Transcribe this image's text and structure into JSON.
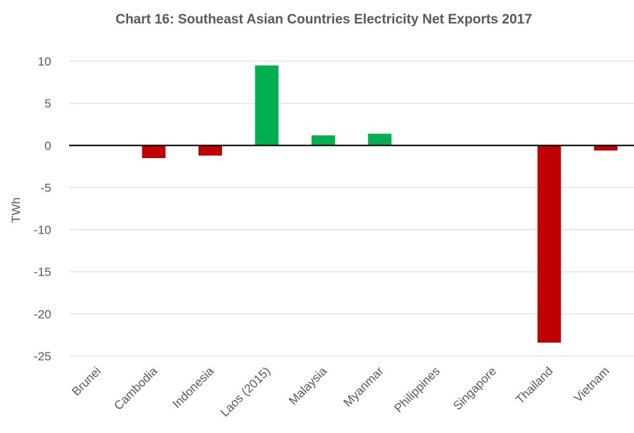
{
  "chart_data": {
    "type": "bar",
    "title": "Chart 16: Southeast Asian Countries Electricity Net Exports 2017",
    "xlabel": "",
    "ylabel": "TWh",
    "ylim": [
      -25,
      10
    ],
    "yticks": [
      10,
      5,
      0,
      -5,
      -10,
      -15,
      -20,
      -25
    ],
    "grid": true,
    "legend": "none",
    "categories": [
      "Brunei",
      "Cambodia",
      "Indonesia",
      "Laos (2015)",
      "Malaysia",
      "Myanmar",
      "Philippines",
      "Singapore",
      "Thailand",
      "Vietnam"
    ],
    "values": [
      0,
      -1.5,
      -1.2,
      9.5,
      1.2,
      1.4,
      0,
      0,
      -23.4,
      -0.6
    ],
    "colors": {
      "positive": "#00b050",
      "negative": "#c00000",
      "grid": "#d9d9d9",
      "zero_line": "#000000",
      "text": "#595959"
    }
  }
}
